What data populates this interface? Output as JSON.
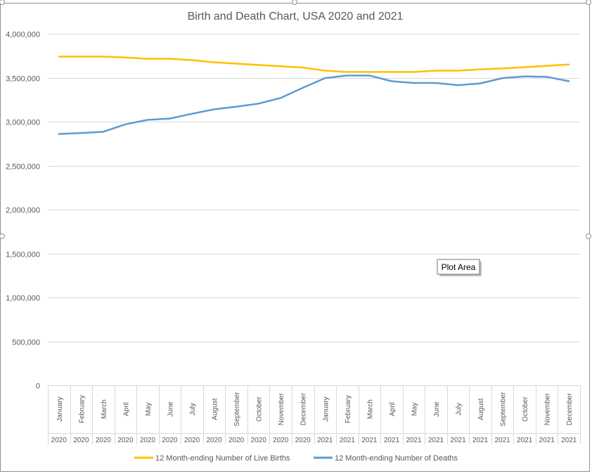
{
  "chart_data": {
    "type": "line",
    "title": "Birth and Death Chart, USA 2020 and 2021",
    "xlabel": "",
    "ylabel": "",
    "ylim": [
      0,
      4000000
    ],
    "y_ticks": [
      "0",
      "500,000",
      "1,000,000",
      "1,500,000",
      "2,000,000",
      "2,500,000",
      "3,000,000",
      "3,500,000",
      "4,000,000"
    ],
    "grid": true,
    "legend_position": "bottom",
    "categories": [
      {
        "month": "January",
        "year": "2020"
      },
      {
        "month": "February",
        "year": "2020"
      },
      {
        "month": "March",
        "year": "2020"
      },
      {
        "month": "April",
        "year": "2020"
      },
      {
        "month": "May",
        "year": "2020"
      },
      {
        "month": "June",
        "year": "2020"
      },
      {
        "month": "July",
        "year": "2020"
      },
      {
        "month": "August",
        "year": "2020"
      },
      {
        "month": "September",
        "year": "2020"
      },
      {
        "month": "October",
        "year": "2020"
      },
      {
        "month": "November",
        "year": "2020"
      },
      {
        "month": "December",
        "year": "2020"
      },
      {
        "month": "January",
        "year": "2021"
      },
      {
        "month": "February",
        "year": "2021"
      },
      {
        "month": "March",
        "year": "2021"
      },
      {
        "month": "April",
        "year": "2021"
      },
      {
        "month": "May",
        "year": "2021"
      },
      {
        "month": "June",
        "year": "2021"
      },
      {
        "month": "July",
        "year": "2021"
      },
      {
        "month": "August",
        "year": "2021"
      },
      {
        "month": "September",
        "year": "2021"
      },
      {
        "month": "October",
        "year": "2021"
      },
      {
        "month": "November",
        "year": "2021"
      },
      {
        "month": "December",
        "year": "2021"
      }
    ],
    "series": [
      {
        "name": "12 Month-ending Number of Live Births",
        "color": "#FFC000",
        "values": [
          3740000,
          3740000,
          3740000,
          3730000,
          3715000,
          3715000,
          3700000,
          3675000,
          3660000,
          3645000,
          3630000,
          3615000,
          3580000,
          3565000,
          3565000,
          3565000,
          3565000,
          3580000,
          3580000,
          3595000,
          3605000,
          3620000,
          3635000,
          3650000
        ]
      },
      {
        "name": "12 Month-ending Number of Deaths",
        "color": "#5B9BD5",
        "values": [
          2860000,
          2870000,
          2885000,
          2970000,
          3020000,
          3035000,
          3090000,
          3140000,
          3170000,
          3205000,
          3270000,
          3385000,
          3495000,
          3525000,
          3525000,
          3460000,
          3440000,
          3440000,
          3415000,
          3435000,
          3495000,
          3515000,
          3510000,
          3460000
        ]
      }
    ]
  },
  "tooltip": {
    "label": "Plot Area"
  },
  "colors": {
    "gridline": "#D9D9D9",
    "axis_text": "#595959",
    "title_text": "#595959"
  }
}
